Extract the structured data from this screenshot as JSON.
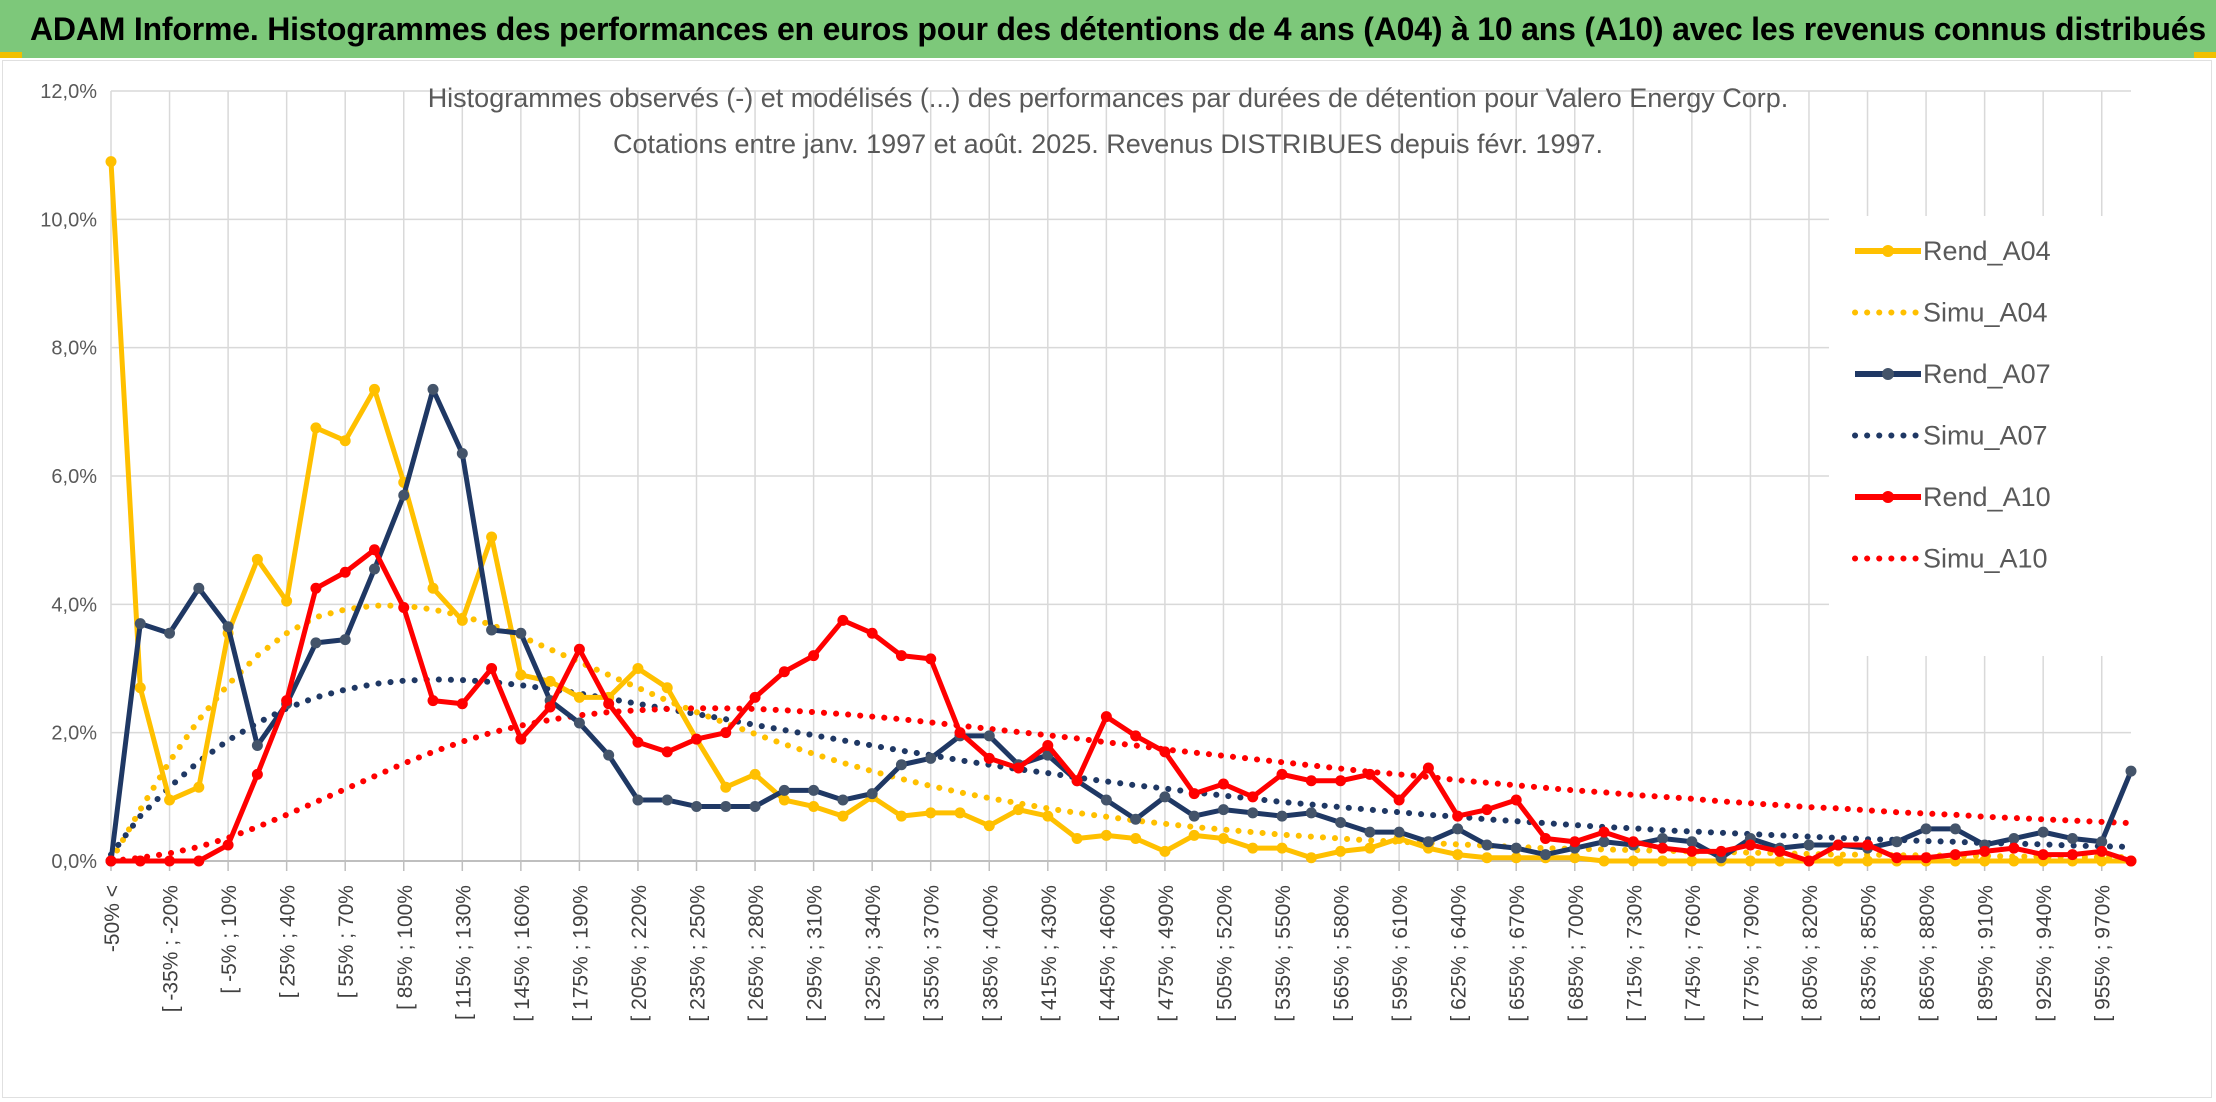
{
  "banner": {
    "title": "ADAM Informe. Histogrammes des performances en euros pour des détentions de 4 ans (A04) à 10 ans (A10) avec les revenus connus distribués"
  },
  "colors": {
    "banner_bg": "#7dc87a",
    "a04": "#ffc000",
    "a07": "#1f3864",
    "a10": "#ff0000",
    "grid": "#d9d9d9",
    "axis_text": "#595959"
  },
  "chart_data": {
    "type": "line",
    "title": "Histogrammes observés (-) et modélisés (...) des performances par durées de détention pour Valero Energy Corp.",
    "subtitle": "Cotations entre janv. 1997 et août. 2025. Revenus DISTRIBUES depuis févr. 1997.",
    "ylim": [
      0,
      12
    ],
    "yticks": [
      0,
      2,
      4,
      6,
      8,
      10,
      12
    ],
    "ytick_labels": [
      "0,0%",
      "2,0%",
      "4,0%",
      "6,0%",
      "8,0%",
      "10,0%",
      "12,0%"
    ],
    "grid": true,
    "legend_position": "right",
    "x_tick_labels": [
      "-50% <",
      "[ -35% ; -20%",
      "[ -5% ; 10%",
      "[ 25% ; 40%",
      "[ 55% ; 70%",
      "[ 85% ; 100%",
      "[ 115% ; 130%",
      "[ 145% ; 160%",
      "[ 175% ; 190%",
      "[ 205% ; 220%",
      "[ 235% ; 250%",
      "[ 265% ; 280%",
      "[ 295% ; 310%",
      "[ 325% ; 340%",
      "[ 355% ; 370%",
      "[ 385% ; 400%",
      "[ 415% ; 430%",
      "[ 445% ; 460%",
      "[ 475% ; 490%",
      "[ 505% ; 520%",
      "[ 535% ; 550%",
      "[ 565% ; 580%",
      "[ 595% ; 610%",
      "[ 625% ; 640%",
      "[ 655% ; 670%",
      "[ 685% ; 700%",
      "[ 715% ; 730%",
      "[ 745% ; 760%",
      "[ 775% ; 790%",
      "[ 805% ; 820%",
      "[ 835% ; 850%",
      "[ 865% ; 880%",
      "[ 895% ; 910%",
      "[ 925% ; 940%",
      "[ 955% ; 970%"
    ],
    "series": [
      {
        "name": "Rend_A04",
        "style": "solid",
        "color": "#ffc000",
        "values": [
          10.9,
          2.7,
          0.95,
          1.15,
          3.55,
          4.7,
          4.05,
          6.75,
          6.55,
          7.35,
          5.9,
          4.25,
          3.75,
          5.05,
          2.9,
          2.8,
          2.55,
          2.55,
          3.0,
          2.7,
          1.9,
          1.15,
          1.35,
          0.95,
          0.85,
          0.7,
          1.0,
          0.7,
          0.75,
          0.75,
          0.55,
          0.8,
          0.7,
          0.35,
          0.4,
          0.35,
          0.15,
          0.4,
          0.35,
          0.2,
          0.2,
          0.05,
          0.15,
          0.2,
          0.35,
          0.2,
          0.1,
          0.05,
          0.05,
          0.05,
          0.05,
          0.0,
          0.0,
          0.0,
          0.0,
          0.0,
          0.0,
          0.0,
          0.0,
          0.0,
          0.0,
          0.0,
          0.0,
          0.0,
          0.0,
          0.0,
          0.0,
          0.0,
          0.0,
          0.0
        ]
      },
      {
        "name": "Simu_A04",
        "style": "dotted",
        "color": "#ffc000",
        "values": [
          0.0,
          0.8,
          1.55,
          2.2,
          2.75,
          3.2,
          3.55,
          3.8,
          3.92,
          3.98,
          3.98,
          3.92,
          3.82,
          3.68,
          3.5,
          3.3,
          3.1,
          2.9,
          2.7,
          2.5,
          2.32,
          2.15,
          1.98,
          1.82,
          1.67,
          1.53,
          1.4,
          1.28,
          1.17,
          1.07,
          0.98,
          0.9,
          0.82,
          0.75,
          0.69,
          0.63,
          0.58,
          0.53,
          0.49,
          0.45,
          0.41,
          0.38,
          0.35,
          0.32,
          0.3,
          0.28,
          0.26,
          0.24,
          0.22,
          0.2,
          0.19,
          0.18,
          0.17,
          0.16,
          0.15,
          0.14,
          0.13,
          0.12,
          0.11,
          0.1,
          0.1,
          0.09,
          0.09,
          0.08,
          0.08,
          0.07,
          0.07,
          0.06,
          0.06,
          0.06
        ]
      },
      {
        "name": "Rend_A07",
        "style": "solid",
        "color": "#1f3864",
        "values": [
          0.0,
          3.7,
          3.55,
          4.25,
          3.65,
          1.8,
          2.45,
          3.4,
          3.45,
          4.55,
          5.7,
          7.35,
          6.35,
          3.6,
          3.55,
          2.5,
          2.15,
          1.65,
          0.95,
          0.95,
          0.85,
          0.85,
          0.85,
          1.1,
          1.1,
          0.95,
          1.05,
          1.5,
          1.6,
          1.95,
          1.95,
          1.5,
          1.65,
          1.25,
          0.95,
          0.65,
          1.0,
          0.7,
          0.8,
          0.75,
          0.7,
          0.75,
          0.6,
          0.45,
          0.45,
          0.3,
          0.5,
          0.25,
          0.2,
          0.1,
          0.2,
          0.3,
          0.25,
          0.35,
          0.3,
          0.05,
          0.35,
          0.2,
          0.25,
          0.25,
          0.2,
          0.3,
          0.5,
          0.5,
          0.25,
          0.35,
          0.45,
          0.35,
          0.3,
          1.4
        ]
      },
      {
        "name": "Simu_A07",
        "style": "dotted",
        "color": "#1f3864",
        "values": [
          0.1,
          0.7,
          1.15,
          1.55,
          1.88,
          2.15,
          2.38,
          2.55,
          2.67,
          2.76,
          2.81,
          2.83,
          2.82,
          2.79,
          2.74,
          2.68,
          2.61,
          2.53,
          2.45,
          2.37,
          2.29,
          2.21,
          2.12,
          2.04,
          1.96,
          1.88,
          1.8,
          1.72,
          1.65,
          1.57,
          1.5,
          1.43,
          1.37,
          1.3,
          1.24,
          1.18,
          1.13,
          1.07,
          1.02,
          0.97,
          0.92,
          0.88,
          0.84,
          0.8,
          0.76,
          0.72,
          0.69,
          0.65,
          0.62,
          0.59,
          0.56,
          0.53,
          0.51,
          0.48,
          0.46,
          0.44,
          0.42,
          0.4,
          0.38,
          0.36,
          0.34,
          0.33,
          0.31,
          0.3,
          0.28,
          0.27,
          0.26,
          0.24,
          0.23,
          0.22
        ]
      },
      {
        "name": "Rend_A10",
        "style": "solid",
        "color": "#ff0000",
        "values": [
          0.0,
          0.0,
          0.0,
          0.0,
          0.25,
          1.35,
          2.5,
          4.25,
          4.5,
          4.85,
          3.95,
          2.5,
          2.45,
          3.0,
          1.9,
          2.4,
          3.3,
          2.45,
          1.85,
          1.7,
          1.9,
          2.0,
          2.55,
          2.95,
          3.2,
          3.75,
          3.55,
          3.2,
          3.15,
          2.0,
          1.6,
          1.45,
          1.8,
          1.25,
          2.25,
          1.95,
          1.7,
          1.05,
          1.2,
          1.0,
          1.35,
          1.25,
          1.25,
          1.35,
          0.95,
          1.45,
          0.7,
          0.8,
          0.95,
          0.35,
          0.3,
          0.45,
          0.3,
          0.2,
          0.15,
          0.15,
          0.25,
          0.15,
          0.0,
          0.25,
          0.25,
          0.05,
          0.05,
          0.1,
          0.15,
          0.2,
          0.1,
          0.1,
          0.15,
          0.0
        ]
      },
      {
        "name": "Simu_A10",
        "style": "dotted",
        "color": "#ff0000",
        "values": [
          0.0,
          0.05,
          0.12,
          0.22,
          0.36,
          0.53,
          0.72,
          0.92,
          1.12,
          1.32,
          1.52,
          1.7,
          1.86,
          2.0,
          2.11,
          2.2,
          2.27,
          2.32,
          2.35,
          2.37,
          2.38,
          2.38,
          2.37,
          2.35,
          2.32,
          2.29,
          2.25,
          2.21,
          2.16,
          2.11,
          2.06,
          2.01,
          1.96,
          1.91,
          1.85,
          1.8,
          1.74,
          1.69,
          1.64,
          1.59,
          1.54,
          1.49,
          1.44,
          1.39,
          1.35,
          1.31,
          1.26,
          1.22,
          1.18,
          1.14,
          1.1,
          1.07,
          1.03,
          1.0,
          0.97,
          0.93,
          0.9,
          0.87,
          0.84,
          0.82,
          0.79,
          0.76,
          0.74,
          0.72,
          0.69,
          0.67,
          0.65,
          0.63,
          0.61,
          0.59
        ]
      }
    ]
  }
}
